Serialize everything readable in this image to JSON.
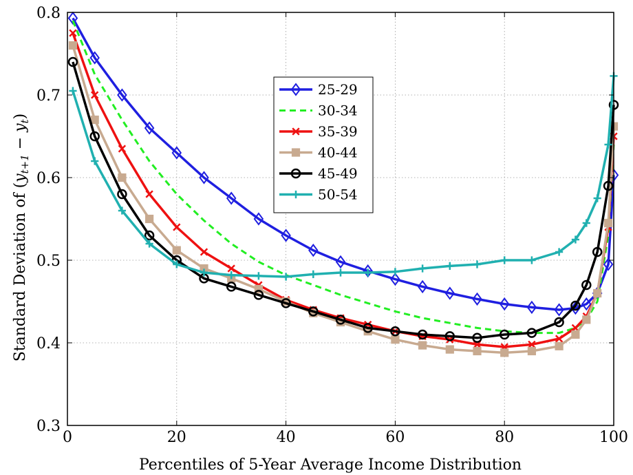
{
  "chart_data": {
    "type": "line",
    "xlabel": "Percentiles of 5-Year Average Income Distribution",
    "ylabel": "Standard Deviation of (y_{t+1} − y_t)",
    "ylabel_parts": {
      "prefix": "Standard Deviation of (",
      "y1": "y",
      "sub1": "t+1",
      "minus": " − ",
      "y2": "y",
      "sub2": "t",
      "suffix": ")"
    },
    "xlim": [
      0,
      100
    ],
    "ylim": [
      0.3,
      0.8
    ],
    "xticks": [
      "0",
      "20",
      "40",
      "60",
      "80",
      "100"
    ],
    "yticks": [
      "0.3",
      "0.4",
      "0.5",
      "0.6",
      "0.7",
      "0.8"
    ],
    "grid": true,
    "legend_position": "upper-center",
    "x": [
      1,
      5,
      10,
      15,
      20,
      25,
      30,
      35,
      40,
      45,
      50,
      55,
      60,
      65,
      70,
      75,
      80,
      85,
      90,
      93,
      95,
      97,
      99,
      100
    ],
    "series": [
      {
        "name": "25-29",
        "color": "#1f1fe0",
        "marker": "diamond",
        "dashed": false,
        "values": [
          0.793,
          0.745,
          0.7,
          0.66,
          0.63,
          0.6,
          0.575,
          0.55,
          0.53,
          0.512,
          0.498,
          0.487,
          0.477,
          0.468,
          0.46,
          0.453,
          0.447,
          0.443,
          0.44,
          0.442,
          0.447,
          0.46,
          0.495,
          0.603
        ]
      },
      {
        "name": "30-34",
        "color": "#22ee22",
        "marker": "none",
        "dashed": true,
        "values": [
          0.79,
          0.725,
          0.67,
          0.62,
          0.58,
          0.548,
          0.52,
          0.498,
          0.482,
          0.47,
          0.458,
          0.448,
          0.438,
          0.43,
          0.424,
          0.418,
          0.414,
          0.412,
          0.412,
          0.418,
          0.428,
          0.45,
          0.53,
          0.64
        ]
      },
      {
        "name": "35-39",
        "color": "#ee1111",
        "marker": "x",
        "dashed": false,
        "values": [
          0.775,
          0.7,
          0.635,
          0.58,
          0.54,
          0.51,
          0.49,
          0.47,
          0.452,
          0.44,
          0.43,
          0.422,
          0.414,
          0.408,
          0.404,
          0.398,
          0.395,
          0.398,
          0.405,
          0.418,
          0.432,
          0.46,
          0.54,
          0.65
        ]
      },
      {
        "name": "40-44",
        "color": "#c8aa90",
        "marker": "square",
        "dashed": false,
        "values": [
          0.76,
          0.67,
          0.6,
          0.55,
          0.512,
          0.49,
          0.478,
          0.465,
          0.45,
          0.436,
          0.425,
          0.414,
          0.404,
          0.397,
          0.392,
          0.39,
          0.388,
          0.39,
          0.396,
          0.41,
          0.428,
          0.46,
          0.545,
          0.662
        ]
      },
      {
        "name": "45-49",
        "color": "#000000",
        "marker": "circle",
        "dashed": false,
        "values": [
          0.74,
          0.65,
          0.58,
          0.53,
          0.5,
          0.478,
          0.468,
          0.458,
          0.448,
          0.438,
          0.428,
          0.418,
          0.414,
          0.41,
          0.408,
          0.406,
          0.41,
          0.412,
          0.425,
          0.445,
          0.47,
          0.51,
          0.59,
          0.688
        ]
      },
      {
        "name": "50-54",
        "color": "#20b0b0",
        "marker": "plus",
        "dashed": false,
        "values": [
          0.705,
          0.62,
          0.56,
          0.52,
          0.495,
          0.485,
          0.482,
          0.481,
          0.48,
          0.483,
          0.485,
          0.485,
          0.486,
          0.49,
          0.493,
          0.495,
          0.5,
          0.5,
          0.51,
          0.525,
          0.545,
          0.575,
          0.64,
          0.723
        ]
      }
    ]
  }
}
